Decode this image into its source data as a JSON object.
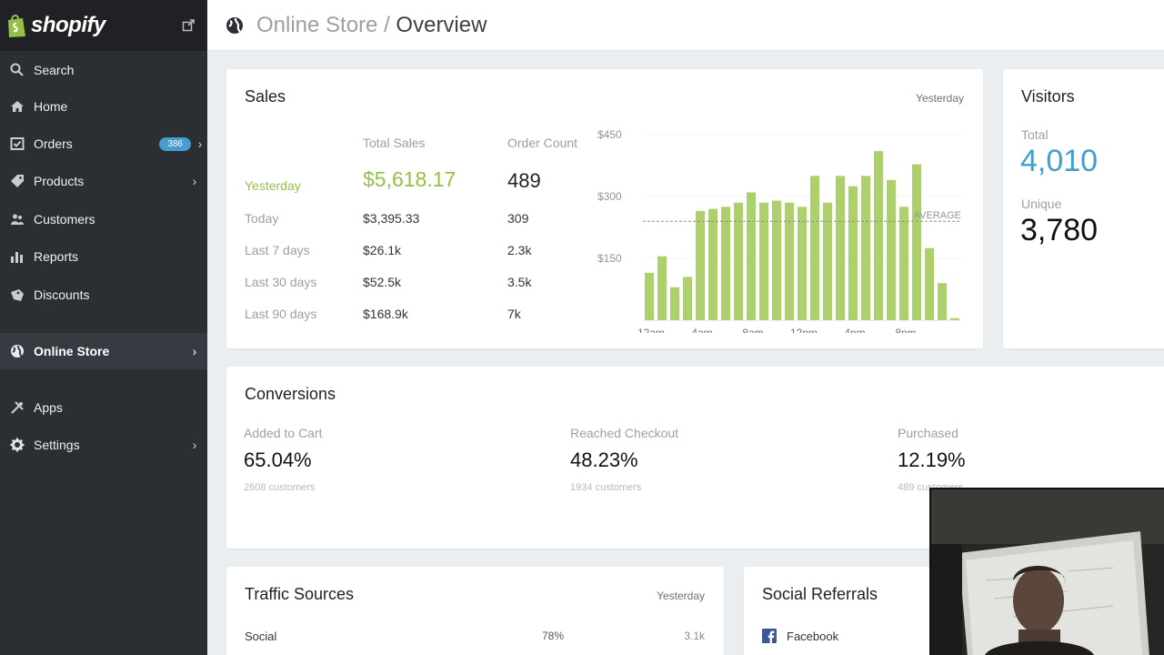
{
  "brand": {
    "name": "shopify"
  },
  "sidebar": {
    "items": [
      {
        "label": "Search",
        "icon": "search-icon"
      },
      {
        "label": "Home",
        "icon": "home-icon"
      },
      {
        "label": "Orders",
        "icon": "orders-icon",
        "badge": "386"
      },
      {
        "label": "Products",
        "icon": "tag-icon"
      },
      {
        "label": "Customers",
        "icon": "customers-icon"
      },
      {
        "label": "Reports",
        "icon": "reports-icon"
      },
      {
        "label": "Discounts",
        "icon": "discounts-icon"
      },
      {
        "label": "Online Store",
        "icon": "globe-icon"
      },
      {
        "label": "Apps",
        "icon": "apps-icon"
      },
      {
        "label": "Settings",
        "icon": "gear-icon"
      }
    ]
  },
  "header": {
    "section": "Online Store",
    "separator": " / ",
    "page": "Overview"
  },
  "sales": {
    "title": "Sales",
    "period": "Yesterday",
    "col_total": "Total Sales",
    "col_orders": "Order Count",
    "rows": [
      {
        "label": "Yesterday",
        "total": "$5,618.17",
        "orders": "489"
      },
      {
        "label": "Today",
        "total": "$3,395.33",
        "orders": "309"
      },
      {
        "label": "Last 7 days",
        "total": "$26.1k",
        "orders": "2.3k"
      },
      {
        "label": "Last 30 days",
        "total": "$52.5k",
        "orders": "3.5k"
      },
      {
        "label": "Last 90 days",
        "total": "$168.9k",
        "orders": "7k"
      }
    ],
    "highlight_color": "#96bf48"
  },
  "chart_data": {
    "type": "bar",
    "y_ticks": [
      "$450",
      "$300",
      "$150"
    ],
    "ylim": [
      0,
      450
    ],
    "x_tick_labels": [
      "12am",
      "4am",
      "8am",
      "12pm",
      "4pm",
      "8pm"
    ],
    "average_label": "AVERAGE",
    "average_value": 240,
    "bar_color": "#aed06c",
    "values": [
      115,
      155,
      80,
      105,
      265,
      270,
      275,
      285,
      310,
      285,
      290,
      285,
      275,
      350,
      285,
      350,
      325,
      350,
      410,
      340,
      275,
      378,
      175,
      90,
      5
    ]
  },
  "visitors": {
    "title": "Visitors",
    "total_label": "Total",
    "total_value": "4,010",
    "unique_label": "Unique",
    "unique_value": "3,780",
    "total_color": "#479ccf"
  },
  "conversions": {
    "title": "Conversions",
    "items": [
      {
        "label": "Added to Cart",
        "value": "65.04%",
        "sub": "2608 customers"
      },
      {
        "label": "Reached Checkout",
        "value": "48.23%",
        "sub": "1934 customers"
      },
      {
        "label": "Purchased",
        "value": "12.19%",
        "sub": "489 customers"
      }
    ]
  },
  "traffic": {
    "title": "Traffic Sources",
    "period": "Yesterday",
    "rows": [
      {
        "source": "Social",
        "percent": "78%",
        "count": "3.1k"
      }
    ]
  },
  "social": {
    "title": "Social Referrals",
    "rows": [
      {
        "name": "Facebook",
        "icon": "facebook-icon"
      }
    ]
  }
}
